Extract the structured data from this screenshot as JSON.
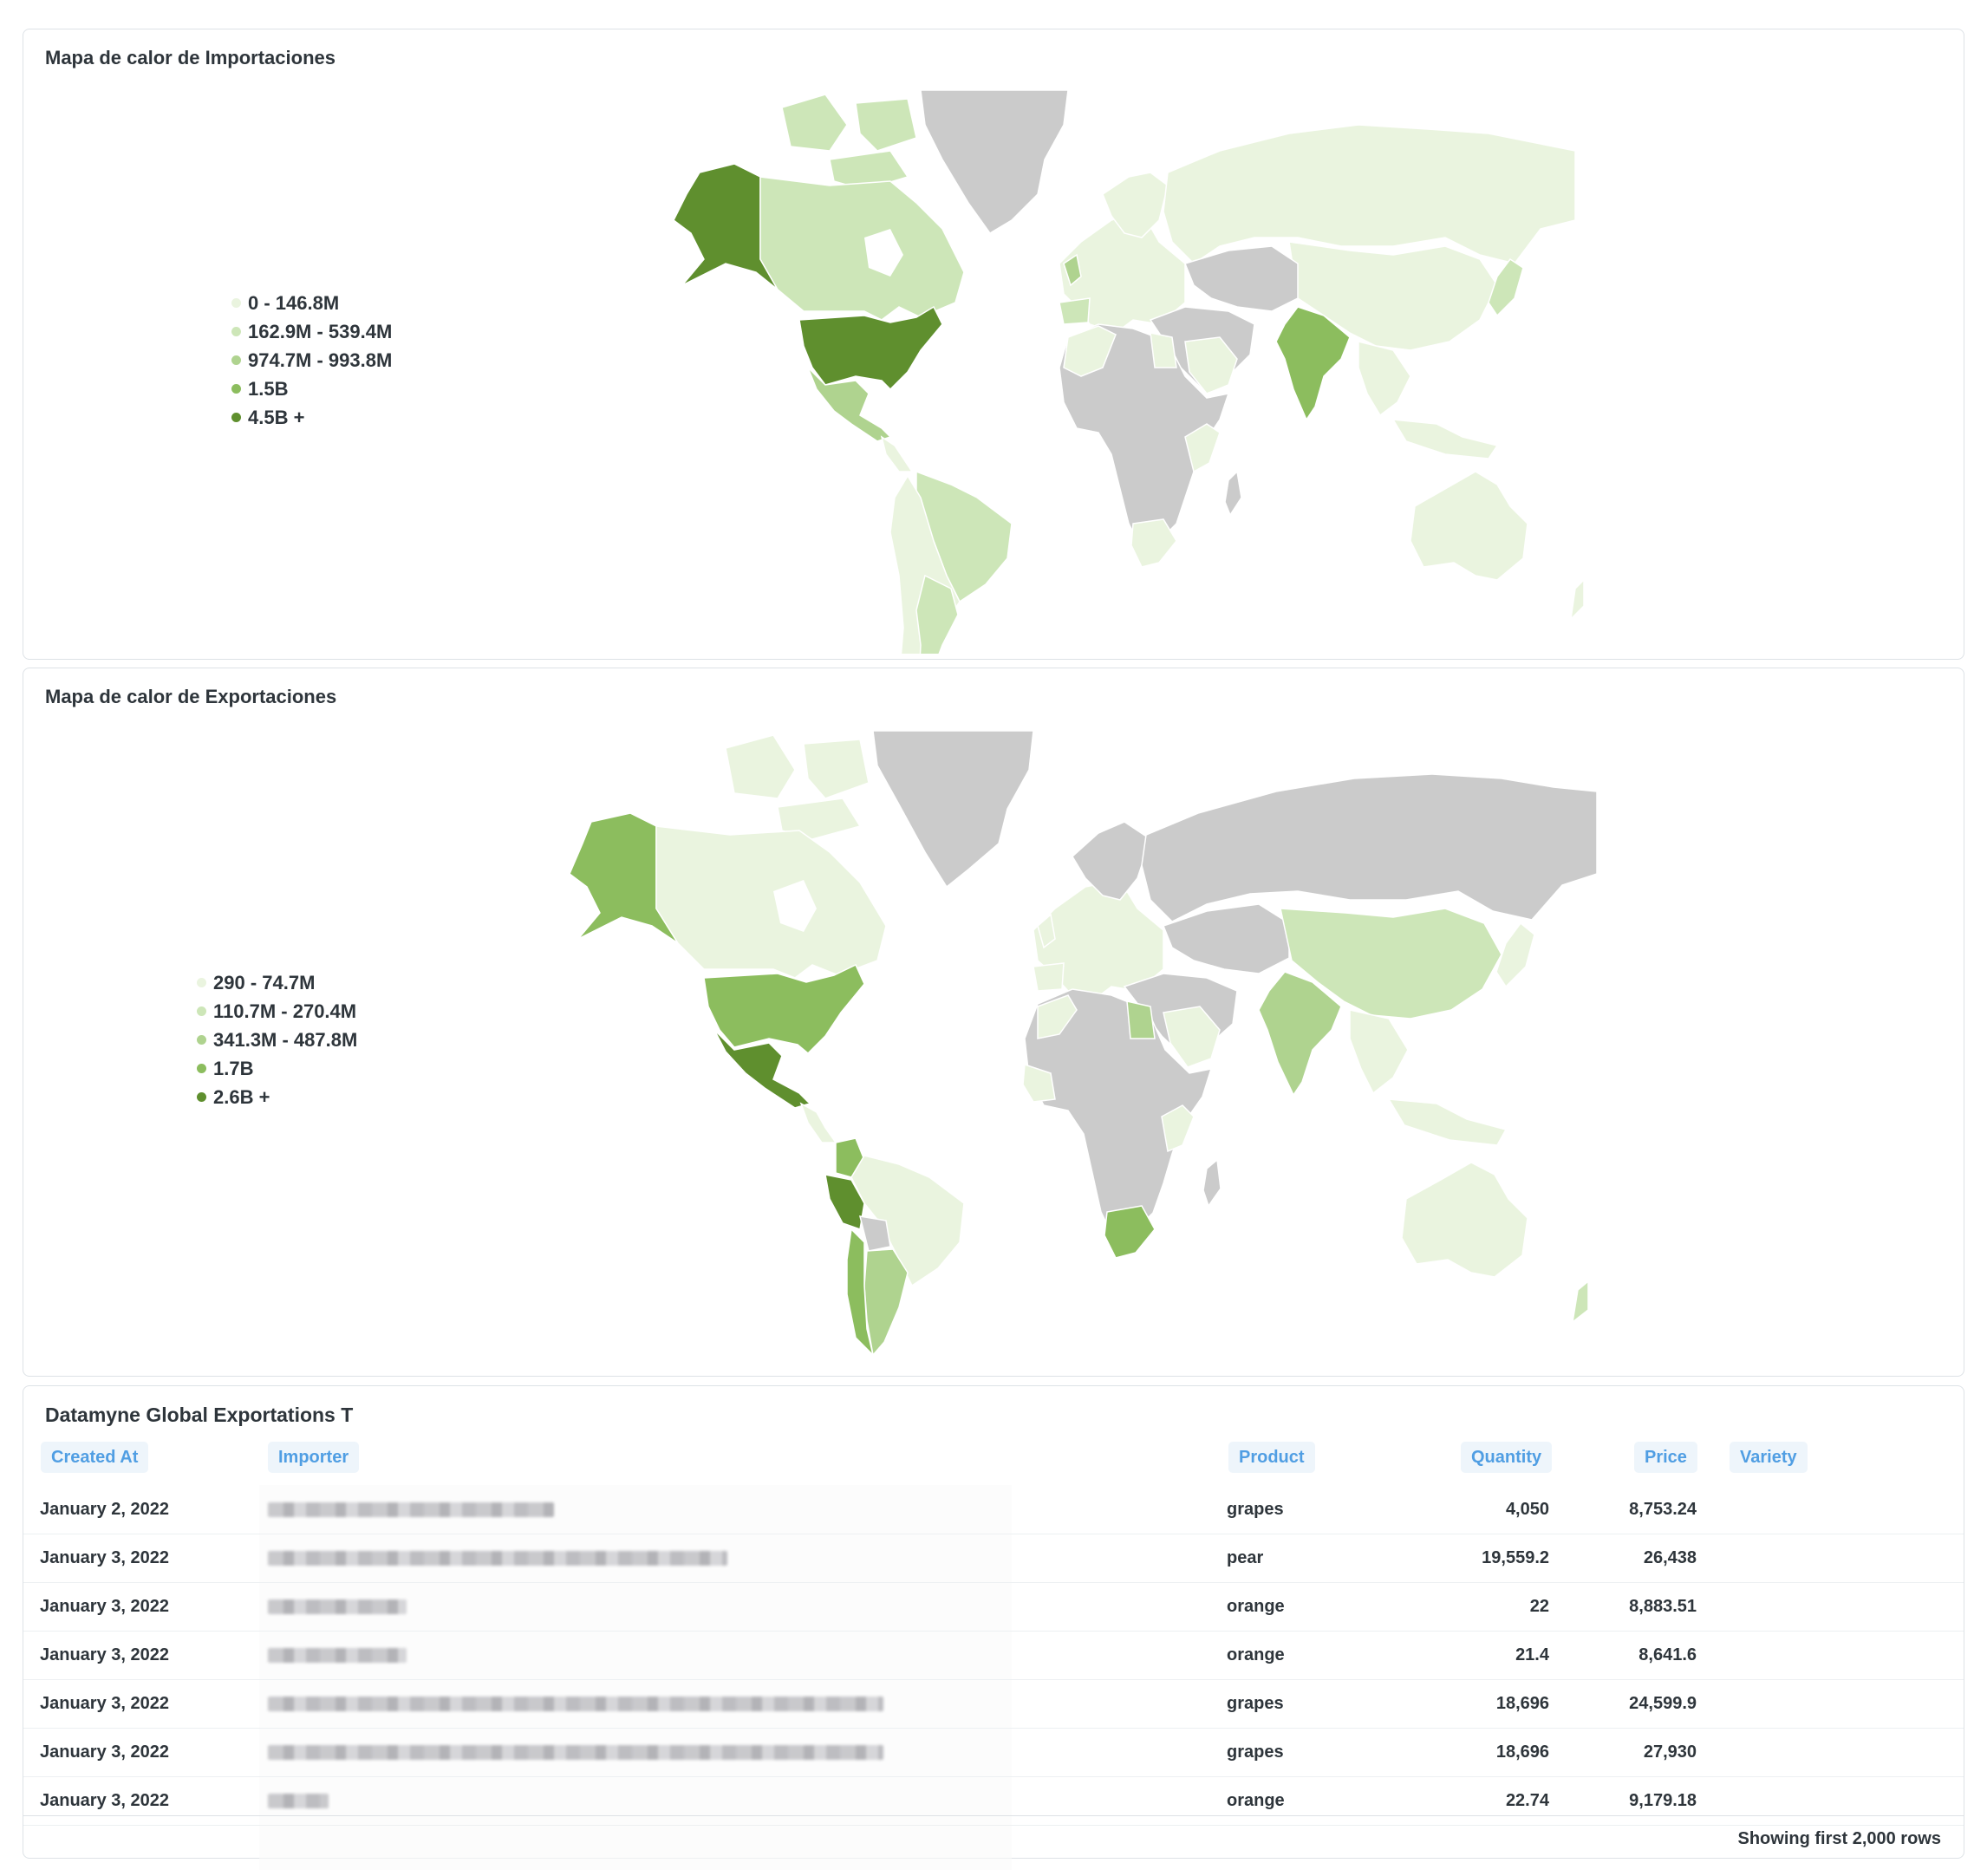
{
  "colors": {
    "no_data": "#cbcbcb",
    "scale": [
      "#eaf4df",
      "#cde6b8",
      "#afd38f",
      "#8cbd5e",
      "#5f8f2e"
    ]
  },
  "imports_map": {
    "title": "Mapa de calor de Importaciones",
    "legend": [
      "0 - 146.8M",
      "162.9M - 539.4M",
      "974.7M - 993.8M",
      "1.5B",
      "4.5B +"
    ]
  },
  "exports_map": {
    "title": "Mapa de calor de Exportaciones",
    "legend": [
      "290 - 74.7M",
      "110.7M - 270.4M",
      "341.3M - 487.8M",
      "1.7B",
      "2.6B +"
    ]
  },
  "table": {
    "title": "Datamyne Global Exportations T",
    "columns": {
      "created_at": "Created At",
      "importer": "Importer",
      "product": "Product",
      "quantity": "Quantity",
      "price": "Price",
      "variety": "Variety"
    },
    "rows": [
      {
        "created_at": "January 2, 2022",
        "product": "grapes",
        "quantity": "4,050",
        "price": "8,753.24"
      },
      {
        "created_at": "January 3, 2022",
        "product": "pear",
        "quantity": "19,559.2",
        "price": "26,438"
      },
      {
        "created_at": "January 3, 2022",
        "product": "orange",
        "quantity": "22",
        "price": "8,883.51"
      },
      {
        "created_at": "January 3, 2022",
        "product": "orange",
        "quantity": "21.4",
        "price": "8,641.6"
      },
      {
        "created_at": "January 3, 2022",
        "product": "grapes",
        "quantity": "18,696",
        "price": "24,599.9"
      },
      {
        "created_at": "January 3, 2022",
        "product": "grapes",
        "quantity": "18,696",
        "price": "27,930"
      },
      {
        "created_at": "January 3, 2022",
        "product": "orange",
        "quantity": "22.74",
        "price": "9,179.18"
      }
    ],
    "footer": "Showing first 2,000 rows"
  }
}
